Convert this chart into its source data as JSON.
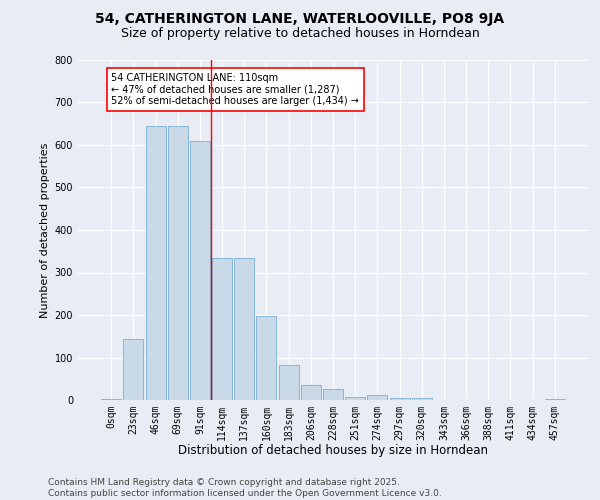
{
  "title1": "54, CATHERINGTON LANE, WATERLOOVILLE, PO8 9JA",
  "title2": "Size of property relative to detached houses in Horndean",
  "xlabel": "Distribution of detached houses by size in Horndean",
  "ylabel": "Number of detached properties",
  "categories": [
    "0sqm",
    "23sqm",
    "46sqm",
    "69sqm",
    "91sqm",
    "114sqm",
    "137sqm",
    "160sqm",
    "183sqm",
    "206sqm",
    "228sqm",
    "251sqm",
    "274sqm",
    "297sqm",
    "320sqm",
    "343sqm",
    "366sqm",
    "388sqm",
    "411sqm",
    "434sqm",
    "457sqm"
  ],
  "values": [
    2,
    143,
    645,
    645,
    610,
    335,
    335,
    198,
    83,
    35,
    25,
    8,
    12,
    5,
    4,
    0,
    0,
    0,
    0,
    0,
    3
  ],
  "bar_color": "#c9d9e8",
  "bar_edge_color": "#7aafd4",
  "vline_x": 4.5,
  "vline_color": "red",
  "annotation_text": "54 CATHERINGTON LANE: 110sqm\n← 47% of detached houses are smaller (1,287)\n52% of semi-detached houses are larger (1,434) →",
  "annotation_box_color": "white",
  "annotation_box_edge": "red",
  "ylim": [
    0,
    800
  ],
  "yticks": [
    0,
    100,
    200,
    300,
    400,
    500,
    600,
    700,
    800
  ],
  "background_color": "#e8edf5",
  "plot_bg_color": "#e8edf5",
  "grid_color": "white",
  "footer": "Contains HM Land Registry data © Crown copyright and database right 2025.\nContains public sector information licensed under the Open Government Licence v3.0.",
  "title1_fontsize": 10,
  "title2_fontsize": 9,
  "xlabel_fontsize": 8.5,
  "ylabel_fontsize": 8,
  "tick_fontsize": 7,
  "footer_fontsize": 6.5
}
